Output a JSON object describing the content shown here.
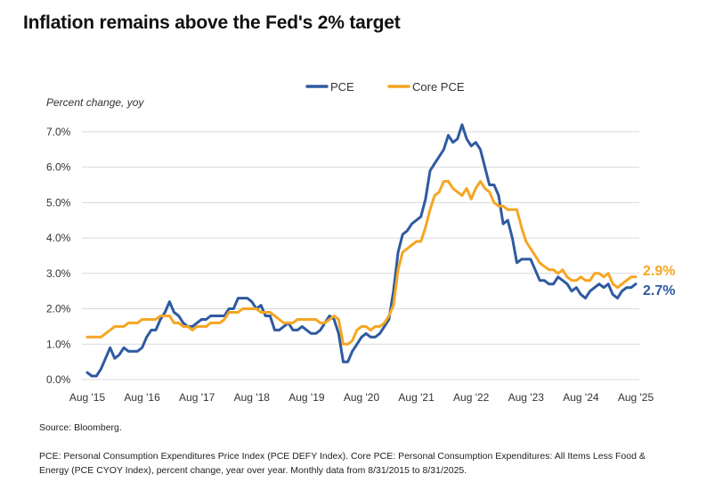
{
  "title": "Inflation remains above the Fed's 2% target",
  "source": "Source: Bloomberg.",
  "note": "PCE: Personal Consumption Expenditures Price Index (PCE DEFY Index). Core PCE: Personal Consumption Expenditures: All Items Less Food & Energy (PCE CYOY Index), percent change, year over year. Monthly data from 8/31/2015 to 8/31/2025.",
  "colors": {
    "pce": "#2e5aa1",
    "core_pce": "#f5a623",
    "grid": "#d9d9d9"
  },
  "chart_data": {
    "type": "line",
    "ylabel": "Percent change, yoy",
    "ylim": [
      0,
      7.5
    ],
    "yticks": [
      0,
      1,
      2,
      3,
      4,
      5,
      6,
      7
    ],
    "ytick_labels": [
      "0.0%",
      "1.0%",
      "2.0%",
      "3.0%",
      "4.0%",
      "5.0%",
      "6.0%",
      "7.0%"
    ],
    "x_range": [
      "2015-08",
      "2025-08"
    ],
    "x_tick_labels": [
      "Aug '15",
      "Aug '16",
      "Aug '17",
      "Aug '18",
      "Aug '19",
      "Aug '20",
      "Aug '21",
      "Aug '22",
      "Aug '23",
      "Aug '24",
      "Aug '25"
    ],
    "grid": "horizontal",
    "legend_position": "top-center",
    "end_labels": {
      "pce": "2.7%",
      "core_pce": "2.9%"
    },
    "series": [
      {
        "name": "PCE",
        "key": "pce",
        "points": [
          [
            "2015-08",
            0.2
          ],
          [
            "2015-09",
            0.1
          ],
          [
            "2015-10",
            0.1
          ],
          [
            "2015-11",
            0.3
          ],
          [
            "2015-12",
            0.6
          ],
          [
            "2016-01",
            0.9
          ],
          [
            "2016-02",
            0.6
          ],
          [
            "2016-03",
            0.7
          ],
          [
            "2016-04",
            0.9
          ],
          [
            "2016-05",
            0.8
          ],
          [
            "2016-06",
            0.8
          ],
          [
            "2016-07",
            0.8
          ],
          [
            "2016-08",
            0.9
          ],
          [
            "2016-09",
            1.2
          ],
          [
            "2016-10",
            1.4
          ],
          [
            "2016-11",
            1.4
          ],
          [
            "2016-12",
            1.7
          ],
          [
            "2017-01",
            1.9
          ],
          [
            "2017-02",
            2.2
          ],
          [
            "2017-03",
            1.9
          ],
          [
            "2017-04",
            1.8
          ],
          [
            "2017-05",
            1.6
          ],
          [
            "2017-06",
            1.5
          ],
          [
            "2017-07",
            1.5
          ],
          [
            "2017-08",
            1.6
          ],
          [
            "2017-09",
            1.7
          ],
          [
            "2017-10",
            1.7
          ],
          [
            "2017-11",
            1.8
          ],
          [
            "2017-12",
            1.8
          ],
          [
            "2018-01",
            1.8
          ],
          [
            "2018-02",
            1.8
          ],
          [
            "2018-03",
            2.0
          ],
          [
            "2018-04",
            2.0
          ],
          [
            "2018-05",
            2.3
          ],
          [
            "2018-06",
            2.3
          ],
          [
            "2018-07",
            2.3
          ],
          [
            "2018-08",
            2.2
          ],
          [
            "2018-09",
            2.0
          ],
          [
            "2018-10",
            2.1
          ],
          [
            "2018-11",
            1.8
          ],
          [
            "2018-12",
            1.8
          ],
          [
            "2019-01",
            1.4
          ],
          [
            "2019-02",
            1.4
          ],
          [
            "2019-03",
            1.5
          ],
          [
            "2019-04",
            1.6
          ],
          [
            "2019-05",
            1.4
          ],
          [
            "2019-06",
            1.4
          ],
          [
            "2019-07",
            1.5
          ],
          [
            "2019-08",
            1.4
          ],
          [
            "2019-09",
            1.3
          ],
          [
            "2019-10",
            1.3
          ],
          [
            "2019-11",
            1.4
          ],
          [
            "2019-12",
            1.6
          ],
          [
            "2020-01",
            1.8
          ],
          [
            "2020-02",
            1.7
          ],
          [
            "2020-03",
            1.3
          ],
          [
            "2020-04",
            0.5
          ],
          [
            "2020-05",
            0.5
          ],
          [
            "2020-06",
            0.8
          ],
          [
            "2020-07",
            1.0
          ],
          [
            "2020-08",
            1.2
          ],
          [
            "2020-09",
            1.3
          ],
          [
            "2020-10",
            1.2
          ],
          [
            "2020-11",
            1.2
          ],
          [
            "2020-12",
            1.3
          ],
          [
            "2021-01",
            1.5
          ],
          [
            "2021-02",
            1.7
          ],
          [
            "2021-03",
            2.5
          ],
          [
            "2021-04",
            3.6
          ],
          [
            "2021-05",
            4.1
          ],
          [
            "2021-06",
            4.2
          ],
          [
            "2021-07",
            4.4
          ],
          [
            "2021-08",
            4.5
          ],
          [
            "2021-09",
            4.6
          ],
          [
            "2021-10",
            5.1
          ],
          [
            "2021-11",
            5.9
          ],
          [
            "2021-12",
            6.1
          ],
          [
            "2022-01",
            6.3
          ],
          [
            "2022-02",
            6.5
          ],
          [
            "2022-03",
            6.9
          ],
          [
            "2022-04",
            6.7
          ],
          [
            "2022-05",
            6.8
          ],
          [
            "2022-06",
            7.2
          ],
          [
            "2022-07",
            6.8
          ],
          [
            "2022-08",
            6.6
          ],
          [
            "2022-09",
            6.7
          ],
          [
            "2022-10",
            6.5
          ],
          [
            "2022-11",
            6.0
          ],
          [
            "2022-12",
            5.5
          ],
          [
            "2023-01",
            5.5
          ],
          [
            "2023-02",
            5.2
          ],
          [
            "2023-03",
            4.4
          ],
          [
            "2023-04",
            4.5
          ],
          [
            "2023-05",
            4.0
          ],
          [
            "2023-06",
            3.3
          ],
          [
            "2023-07",
            3.4
          ],
          [
            "2023-08",
            3.4
          ],
          [
            "2023-09",
            3.4
          ],
          [
            "2023-10",
            3.1
          ],
          [
            "2023-11",
            2.8
          ],
          [
            "2023-12",
            2.8
          ],
          [
            "2024-01",
            2.7
          ],
          [
            "2024-02",
            2.7
          ],
          [
            "2024-03",
            2.9
          ],
          [
            "2024-04",
            2.8
          ],
          [
            "2024-05",
            2.7
          ],
          [
            "2024-06",
            2.5
          ],
          [
            "2024-07",
            2.6
          ],
          [
            "2024-08",
            2.4
          ],
          [
            "2024-09",
            2.3
          ],
          [
            "2024-10",
            2.5
          ],
          [
            "2024-11",
            2.6
          ],
          [
            "2024-12",
            2.7
          ],
          [
            "2025-01",
            2.6
          ],
          [
            "2025-02",
            2.7
          ],
          [
            "2025-03",
            2.4
          ],
          [
            "2025-04",
            2.3
          ],
          [
            "2025-05",
            2.5
          ],
          [
            "2025-06",
            2.6
          ],
          [
            "2025-07",
            2.6
          ],
          [
            "2025-08",
            2.7
          ]
        ]
      },
      {
        "name": "Core PCE",
        "key": "core_pce",
        "points": [
          [
            "2015-08",
            1.2
          ],
          [
            "2015-09",
            1.2
          ],
          [
            "2015-10",
            1.2
          ],
          [
            "2015-11",
            1.2
          ],
          [
            "2015-12",
            1.3
          ],
          [
            "2016-01",
            1.4
          ],
          [
            "2016-02",
            1.5
          ],
          [
            "2016-03",
            1.5
          ],
          [
            "2016-04",
            1.5
          ],
          [
            "2016-05",
            1.6
          ],
          [
            "2016-06",
            1.6
          ],
          [
            "2016-07",
            1.6
          ],
          [
            "2016-08",
            1.7
          ],
          [
            "2016-09",
            1.7
          ],
          [
            "2016-10",
            1.7
          ],
          [
            "2016-11",
            1.7
          ],
          [
            "2016-12",
            1.8
          ],
          [
            "2017-01",
            1.8
          ],
          [
            "2017-02",
            1.8
          ],
          [
            "2017-03",
            1.6
          ],
          [
            "2017-04",
            1.6
          ],
          [
            "2017-05",
            1.5
          ],
          [
            "2017-06",
            1.5
          ],
          [
            "2017-07",
            1.4
          ],
          [
            "2017-08",
            1.5
          ],
          [
            "2017-09",
            1.5
          ],
          [
            "2017-10",
            1.5
          ],
          [
            "2017-11",
            1.6
          ],
          [
            "2017-12",
            1.6
          ],
          [
            "2018-01",
            1.6
          ],
          [
            "2018-02",
            1.7
          ],
          [
            "2018-03",
            1.9
          ],
          [
            "2018-04",
            1.9
          ],
          [
            "2018-05",
            1.9
          ],
          [
            "2018-06",
            2.0
          ],
          [
            "2018-07",
            2.0
          ],
          [
            "2018-08",
            2.0
          ],
          [
            "2018-09",
            2.0
          ],
          [
            "2018-10",
            1.9
          ],
          [
            "2018-11",
            1.9
          ],
          [
            "2018-12",
            1.9
          ],
          [
            "2019-01",
            1.8
          ],
          [
            "2019-02",
            1.7
          ],
          [
            "2019-03",
            1.6
          ],
          [
            "2019-04",
            1.6
          ],
          [
            "2019-05",
            1.6
          ],
          [
            "2019-06",
            1.7
          ],
          [
            "2019-07",
            1.7
          ],
          [
            "2019-08",
            1.7
          ],
          [
            "2019-09",
            1.7
          ],
          [
            "2019-10",
            1.7
          ],
          [
            "2019-11",
            1.6
          ],
          [
            "2019-12",
            1.6
          ],
          [
            "2020-01",
            1.7
          ],
          [
            "2020-02",
            1.8
          ],
          [
            "2020-03",
            1.7
          ],
          [
            "2020-04",
            1.0
          ],
          [
            "2020-05",
            1.0
          ],
          [
            "2020-06",
            1.1
          ],
          [
            "2020-07",
            1.4
          ],
          [
            "2020-08",
            1.5
          ],
          [
            "2020-09",
            1.5
          ],
          [
            "2020-10",
            1.4
          ],
          [
            "2020-11",
            1.5
          ],
          [
            "2020-12",
            1.5
          ],
          [
            "2021-01",
            1.6
          ],
          [
            "2021-02",
            1.8
          ],
          [
            "2021-03",
            2.1
          ],
          [
            "2021-04",
            3.1
          ],
          [
            "2021-05",
            3.6
          ],
          [
            "2021-06",
            3.7
          ],
          [
            "2021-07",
            3.8
          ],
          [
            "2021-08",
            3.9
          ],
          [
            "2021-09",
            3.9
          ],
          [
            "2021-10",
            4.3
          ],
          [
            "2021-11",
            4.8
          ],
          [
            "2021-12",
            5.2
          ],
          [
            "2022-01",
            5.3
          ],
          [
            "2022-02",
            5.6
          ],
          [
            "2022-03",
            5.6
          ],
          [
            "2022-04",
            5.4
          ],
          [
            "2022-05",
            5.3
          ],
          [
            "2022-06",
            5.2
          ],
          [
            "2022-07",
            5.4
          ],
          [
            "2022-08",
            5.1
          ],
          [
            "2022-09",
            5.4
          ],
          [
            "2022-10",
            5.6
          ],
          [
            "2022-11",
            5.4
          ],
          [
            "2022-12",
            5.3
          ],
          [
            "2023-01",
            5.0
          ],
          [
            "2023-02",
            4.9
          ],
          [
            "2023-03",
            4.9
          ],
          [
            "2023-04",
            4.8
          ],
          [
            "2023-05",
            4.8
          ],
          [
            "2023-06",
            4.8
          ],
          [
            "2023-07",
            4.3
          ],
          [
            "2023-08",
            3.9
          ],
          [
            "2023-09",
            3.7
          ],
          [
            "2023-10",
            3.5
          ],
          [
            "2023-11",
            3.3
          ],
          [
            "2023-12",
            3.2
          ],
          [
            "2024-01",
            3.1
          ],
          [
            "2024-02",
            3.1
          ],
          [
            "2024-03",
            3.0
          ],
          [
            "2024-04",
            3.1
          ],
          [
            "2024-05",
            2.9
          ],
          [
            "2024-06",
            2.8
          ],
          [
            "2024-07",
            2.8
          ],
          [
            "2024-08",
            2.9
          ],
          [
            "2024-09",
            2.8
          ],
          [
            "2024-10",
            2.8
          ],
          [
            "2024-11",
            3.0
          ],
          [
            "2024-12",
            3.0
          ],
          [
            "2025-01",
            2.9
          ],
          [
            "2025-02",
            3.0
          ],
          [
            "2025-03",
            2.7
          ],
          [
            "2025-04",
            2.6
          ],
          [
            "2025-05",
            2.7
          ],
          [
            "2025-06",
            2.8
          ],
          [
            "2025-07",
            2.9
          ],
          [
            "2025-08",
            2.9
          ]
        ]
      }
    ]
  }
}
